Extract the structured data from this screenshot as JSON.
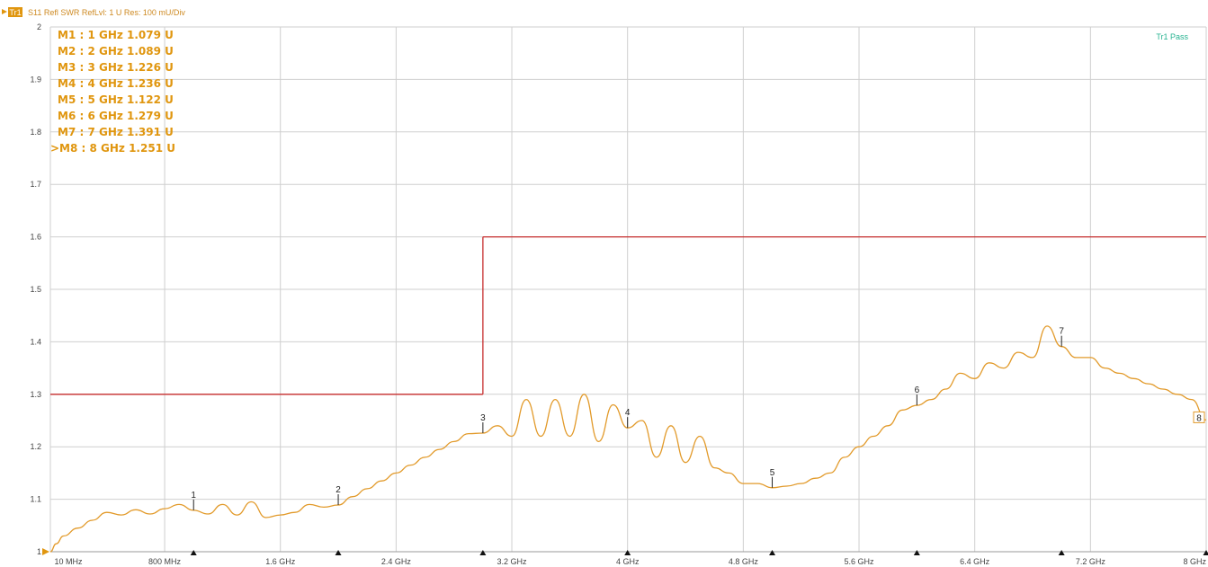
{
  "header": {
    "trace_badge": "Tr1",
    "info": "S11 Refl SWR RefLvl: 1  U Res: 100 mU/Div"
  },
  "pass_label": "Tr1 Pass",
  "colors": {
    "trace": "#e29a2a",
    "limit": "#c62d2d",
    "marker_text": "#e0960f",
    "grid": "#cfcfcf",
    "pass": "#27b391"
  },
  "chart_data": {
    "type": "line",
    "title": "",
    "xlabel": "",
    "ylabel": "",
    "x_unit": "GHz",
    "xlim": [
      0.01,
      8
    ],
    "ylim": [
      1,
      2
    ],
    "grid": true,
    "x_ticks": [
      {
        "v": 0.01,
        "label": "10 MHz"
      },
      {
        "v": 0.8,
        "label": "800 MHz"
      },
      {
        "v": 1.6,
        "label": "1.6 GHz"
      },
      {
        "v": 2.4,
        "label": "2.4 GHz"
      },
      {
        "v": 3.2,
        "label": "3.2 GHz"
      },
      {
        "v": 4.0,
        "label": "4 GHz"
      },
      {
        "v": 4.8,
        "label": "4.8 GHz"
      },
      {
        "v": 5.6,
        "label": "5.6 GHz"
      },
      {
        "v": 6.4,
        "label": "6.4 GHz"
      },
      {
        "v": 7.2,
        "label": "7.2 GHz"
      },
      {
        "v": 8.0,
        "label": "8 GHz"
      }
    ],
    "y_ticks": [
      {
        "v": 1.0,
        "label": "1"
      },
      {
        "v": 1.1,
        "label": "1.1"
      },
      {
        "v": 1.2,
        "label": "1.2"
      },
      {
        "v": 1.3,
        "label": "1.3"
      },
      {
        "v": 1.4,
        "label": "1.4"
      },
      {
        "v": 1.5,
        "label": "1.5"
      },
      {
        "v": 1.6,
        "label": "1.6"
      },
      {
        "v": 1.7,
        "label": "1.7"
      },
      {
        "v": 1.8,
        "label": "1.8"
      },
      {
        "v": 1.9,
        "label": "1.9"
      },
      {
        "v": 2.0,
        "label": "2"
      }
    ],
    "limit_line": [
      {
        "x": 0.01,
        "y": 1.3
      },
      {
        "x": 3.0,
        "y": 1.3
      },
      {
        "x": 3.0,
        "y": 1.6
      },
      {
        "x": 8.0,
        "y": 1.6
      }
    ],
    "series": [
      {
        "values": [
          {
            "x": 0.01,
            "y": 1.0
          },
          {
            "x": 0.05,
            "y": 1.015
          },
          {
            "x": 0.1,
            "y": 1.03
          },
          {
            "x": 0.2,
            "y": 1.045
          },
          {
            "x": 0.3,
            "y": 1.06
          },
          {
            "x": 0.4,
            "y": 1.075
          },
          {
            "x": 0.5,
            "y": 1.07
          },
          {
            "x": 0.6,
            "y": 1.08
          },
          {
            "x": 0.7,
            "y": 1.072
          },
          {
            "x": 0.8,
            "y": 1.082
          },
          {
            "x": 0.9,
            "y": 1.09
          },
          {
            "x": 1.0,
            "y": 1.079
          },
          {
            "x": 1.1,
            "y": 1.072
          },
          {
            "x": 1.2,
            "y": 1.09
          },
          {
            "x": 1.3,
            "y": 1.07
          },
          {
            "x": 1.4,
            "y": 1.095
          },
          {
            "x": 1.5,
            "y": 1.065
          },
          {
            "x": 1.6,
            "y": 1.07
          },
          {
            "x": 1.7,
            "y": 1.075
          },
          {
            "x": 1.8,
            "y": 1.09
          },
          {
            "x": 1.9,
            "y": 1.085
          },
          {
            "x": 2.0,
            "y": 1.089
          },
          {
            "x": 2.1,
            "y": 1.105
          },
          {
            "x": 2.2,
            "y": 1.12
          },
          {
            "x": 2.3,
            "y": 1.135
          },
          {
            "x": 2.4,
            "y": 1.15
          },
          {
            "x": 2.5,
            "y": 1.165
          },
          {
            "x": 2.6,
            "y": 1.18
          },
          {
            "x": 2.7,
            "y": 1.195
          },
          {
            "x": 2.8,
            "y": 1.21
          },
          {
            "x": 2.9,
            "y": 1.225
          },
          {
            "x": 3.0,
            "y": 1.226
          },
          {
            "x": 3.1,
            "y": 1.24
          },
          {
            "x": 3.2,
            "y": 1.22
          },
          {
            "x": 3.3,
            "y": 1.29
          },
          {
            "x": 3.4,
            "y": 1.22
          },
          {
            "x": 3.5,
            "y": 1.29
          },
          {
            "x": 3.6,
            "y": 1.22
          },
          {
            "x": 3.7,
            "y": 1.3
          },
          {
            "x": 3.8,
            "y": 1.21
          },
          {
            "x": 3.9,
            "y": 1.28
          },
          {
            "x": 4.0,
            "y": 1.236
          },
          {
            "x": 4.1,
            "y": 1.25
          },
          {
            "x": 4.2,
            "y": 1.18
          },
          {
            "x": 4.3,
            "y": 1.24
          },
          {
            "x": 4.4,
            "y": 1.17
          },
          {
            "x": 4.5,
            "y": 1.22
          },
          {
            "x": 4.6,
            "y": 1.16
          },
          {
            "x": 4.7,
            "y": 1.15
          },
          {
            "x": 4.8,
            "y": 1.13
          },
          {
            "x": 4.9,
            "y": 1.13
          },
          {
            "x": 5.0,
            "y": 1.122
          },
          {
            "x": 5.1,
            "y": 1.125
          },
          {
            "x": 5.2,
            "y": 1.13
          },
          {
            "x": 5.3,
            "y": 1.14
          },
          {
            "x": 5.4,
            "y": 1.15
          },
          {
            "x": 5.5,
            "y": 1.18
          },
          {
            "x": 5.6,
            "y": 1.2
          },
          {
            "x": 5.7,
            "y": 1.22
          },
          {
            "x": 5.8,
            "y": 1.24
          },
          {
            "x": 5.9,
            "y": 1.27
          },
          {
            "x": 6.0,
            "y": 1.279
          },
          {
            "x": 6.1,
            "y": 1.29
          },
          {
            "x": 6.2,
            "y": 1.31
          },
          {
            "x": 6.3,
            "y": 1.34
          },
          {
            "x": 6.4,
            "y": 1.33
          },
          {
            "x": 6.5,
            "y": 1.36
          },
          {
            "x": 6.6,
            "y": 1.35
          },
          {
            "x": 6.7,
            "y": 1.38
          },
          {
            "x": 6.8,
            "y": 1.37
          },
          {
            "x": 6.9,
            "y": 1.43
          },
          {
            "x": 7.0,
            "y": 1.391
          },
          {
            "x": 7.1,
            "y": 1.37
          },
          {
            "x": 7.2,
            "y": 1.37
          },
          {
            "x": 7.3,
            "y": 1.35
          },
          {
            "x": 7.4,
            "y": 1.34
          },
          {
            "x": 7.5,
            "y": 1.33
          },
          {
            "x": 7.6,
            "y": 1.32
          },
          {
            "x": 7.7,
            "y": 1.31
          },
          {
            "x": 7.8,
            "y": 1.3
          },
          {
            "x": 7.9,
            "y": 1.29
          },
          {
            "x": 8.0,
            "y": 1.251
          }
        ]
      }
    ],
    "markers": [
      {
        "id": "1",
        "readout": "M1  :   1 GHz  1.079  U",
        "x": 1.0,
        "y": 1.079
      },
      {
        "id": "2",
        "readout": "M2  :   2 GHz  1.089  U",
        "x": 2.0,
        "y": 1.089
      },
      {
        "id": "3",
        "readout": "M3  :   3 GHz  1.226  U",
        "x": 3.0,
        "y": 1.226
      },
      {
        "id": "4",
        "readout": "M4  :   4 GHz  1.236  U",
        "x": 4.0,
        "y": 1.236
      },
      {
        "id": "5",
        "readout": "M5  :   5 GHz  1.122  U",
        "x": 5.0,
        "y": 1.122
      },
      {
        "id": "6",
        "readout": "M6  :   6 GHz  1.279  U",
        "x": 6.0,
        "y": 1.279
      },
      {
        "id": "7",
        "readout": "M7  :   7 GHz  1.391  U",
        "x": 7.0,
        "y": 1.391
      },
      {
        "id": "8",
        "readout": ">M8  :   8 GHz  1.251  U",
        "x": 8.0,
        "y": 1.251
      }
    ]
  }
}
